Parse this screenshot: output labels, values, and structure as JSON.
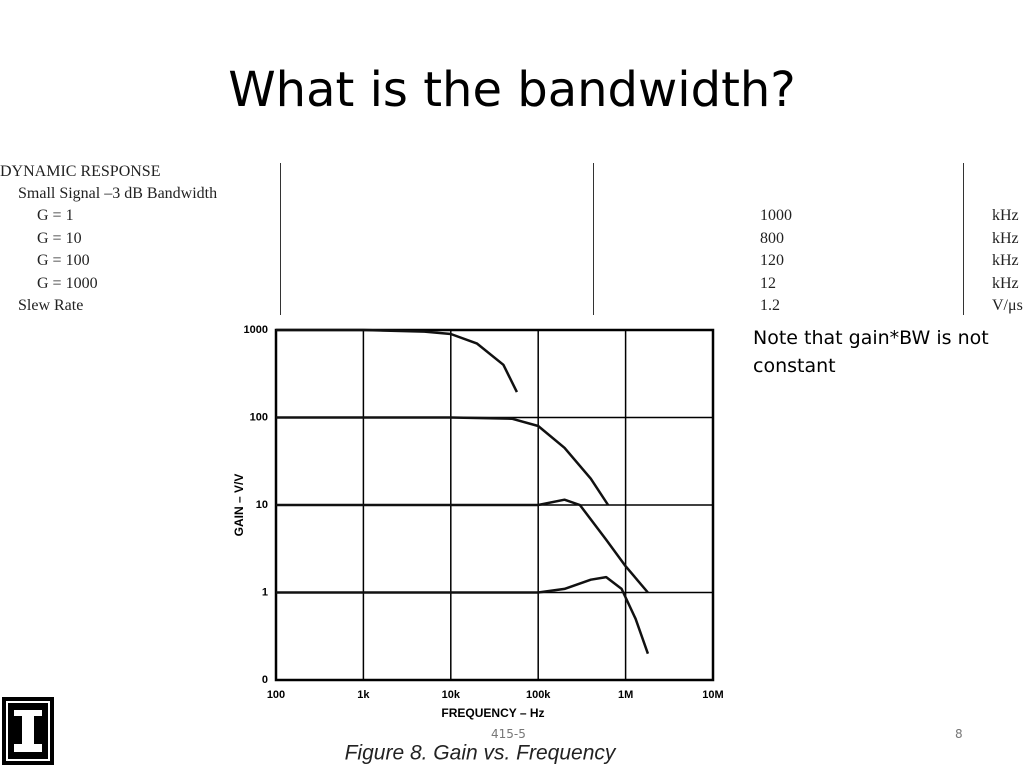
{
  "slide_title": "What is the bandwidth?",
  "table": {
    "section": "DYNAMIC RESPONSE",
    "subsection": "Small Signal –3 dB Bandwidth",
    "rows": [
      {
        "label": "G = 1",
        "value": 1000,
        "unit": "kHz"
      },
      {
        "label": "G = 10",
        "value": 800,
        "unit": "kHz"
      },
      {
        "label": "G = 100",
        "value": 120,
        "unit": "kHz"
      },
      {
        "label": "G = 1000",
        "value": 12,
        "unit": "kHz"
      },
      {
        "label": "Slew Rate",
        "value": 1.2,
        "unit": "V/μs"
      }
    ]
  },
  "note": "Note that gain*BW is not constant",
  "chart_data": {
    "type": "line",
    "caption": "Figure 8.  Gain vs. Frequency",
    "x_label": "FREQUENCY – Hz",
    "y_label": "GAIN – V/V",
    "log_x": true,
    "log_y": true,
    "grid": true,
    "xlim": [
      100,
      10000000
    ],
    "ylim": [
      0.1,
      1000
    ],
    "xticks": [
      100,
      {
        "value": 1000,
        "label": "1k"
      },
      {
        "value": 10000,
        "label": "10k"
      },
      {
        "value": 100000,
        "label": "100k"
      },
      {
        "value": 1000000,
        "label": "1M"
      },
      {
        "value": 10000000,
        "label": "10M"
      }
    ],
    "yticks": [
      1000,
      100,
      10,
      1,
      {
        "value": 0.1,
        "label": "0"
      }
    ],
    "series": [
      {
        "color": "#111111",
        "x": [
          100,
          1000,
          5000,
          10000,
          20000,
          40000,
          57000
        ],
        "values": [
          1000,
          1000,
          960,
          900,
          700,
          400,
          195
        ]
      },
      {
        "color": "#111111",
        "x": [
          100,
          10000,
          50000,
          100000,
          200000,
          400000,
          630000
        ],
        "values": [
          100,
          100,
          97,
          80,
          45,
          20,
          10
        ]
      },
      {
        "color": "#111111",
        "x": [
          100,
          100000,
          200000,
          300000,
          600000,
          1000000,
          1800000
        ],
        "values": [
          10,
          10,
          11.5,
          10,
          4,
          2,
          1
        ]
      },
      {
        "color": "#111111",
        "x": [
          100,
          100000,
          200000,
          400000,
          600000,
          900000,
          1300000,
          1800000
        ],
        "values": [
          1,
          1,
          1.1,
          1.4,
          1.5,
          1.1,
          0.5,
          0.2
        ]
      }
    ]
  },
  "footer": {
    "code": "415-5",
    "page": 8
  }
}
